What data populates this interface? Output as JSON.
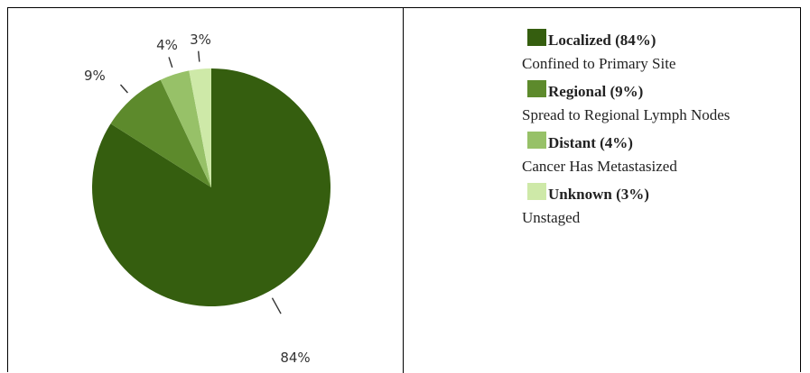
{
  "chart_data": {
    "type": "pie",
    "slices": [
      {
        "label": "Localized",
        "value": 84,
        "color": "#355E0F"
      },
      {
        "label": "Regional",
        "value": 9,
        "color": "#5D8A2C"
      },
      {
        "label": "Distant",
        "value": 4,
        "color": "#97C168"
      },
      {
        "label": "Unknown",
        "value": 3,
        "color": "#CEE9A8"
      }
    ],
    "data_labels": [
      "84%",
      "9%",
      "4%",
      "3%"
    ]
  },
  "legend": {
    "items": [
      {
        "title": "Localized (84%)",
        "desc": "Confined to Primary Site",
        "color": "#355E0F"
      },
      {
        "title": "Regional (9%)",
        "desc": "Spread to Regional Lymph Nodes",
        "color": "#5D8A2C"
      },
      {
        "title": "Distant (4%)",
        "desc": "Cancer Has Metastasized",
        "color": "#97C168"
      },
      {
        "title": "Unknown (3%)",
        "desc": "Unstaged",
        "color": "#CEE9A8"
      }
    ]
  }
}
